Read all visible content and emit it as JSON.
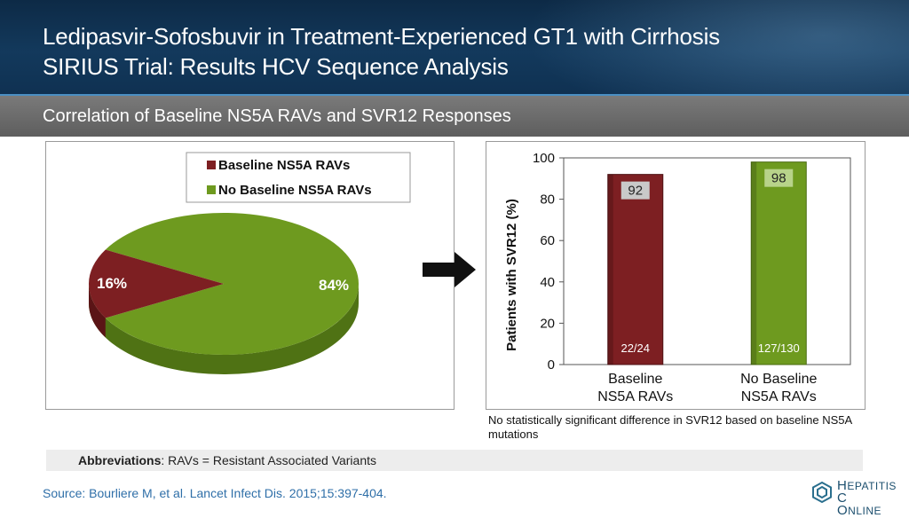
{
  "header": {
    "title_line1": "Ledipasvir-Sofosbuvir in Treatment-Experienced GT1 with Cirrhosis",
    "title_line2": "SIRIUS Trial: Results HCV Sequence Analysis"
  },
  "subtitle": "Correlation of Baseline NS5A RAVs and SVR12 Responses",
  "colors": {
    "maroon": "#7d1f22",
    "green": "#6e9a1f"
  },
  "chart_data": [
    {
      "type": "pie",
      "legend": [
        "Baseline NS5A RAVs",
        "No Baseline NS5A RAVs"
      ],
      "legend_placement": "top-right",
      "slices": [
        {
          "name": "Baseline NS5A RAVs",
          "value": 16,
          "label": "16%"
        },
        {
          "name": "No Baseline NS5A RAVs",
          "value": 84,
          "label": "84%"
        }
      ]
    },
    {
      "type": "bar",
      "categories": [
        [
          "Baseline",
          "NS5A RAVs"
        ],
        [
          "No Baseline",
          "NS5A RAVs"
        ]
      ],
      "values": [
        92,
        98
      ],
      "value_labels": [
        "92",
        "98"
      ],
      "fraction_labels": [
        "22/24",
        "127/130"
      ],
      "ylabel": "Patients with SVR12 (%)",
      "ylim": [
        0,
        100
      ],
      "yticks": [
        "0",
        "20",
        "40",
        "60",
        "80",
        "100"
      ],
      "grid": false
    }
  ],
  "note": "No statistically significant difference in SVR12 based on baseline NS5A mutations",
  "abbreviations": {
    "label": "Abbreviations",
    "text": ": RAVs = Resistant Associated Variants"
  },
  "source": "Source: Bourliere M, et al. Lancet Infect Dis. 2015;15:397-404.",
  "logo": {
    "line1_cap": "H",
    "line1_rest": "EPATITIS",
    "line1_tail": " C",
    "line2_cap": "O",
    "line2_rest": "NLINE"
  },
  "icons": {
    "arrow": "right-arrow-icon",
    "logo_mark": "hepatitis-c-online-logo"
  }
}
